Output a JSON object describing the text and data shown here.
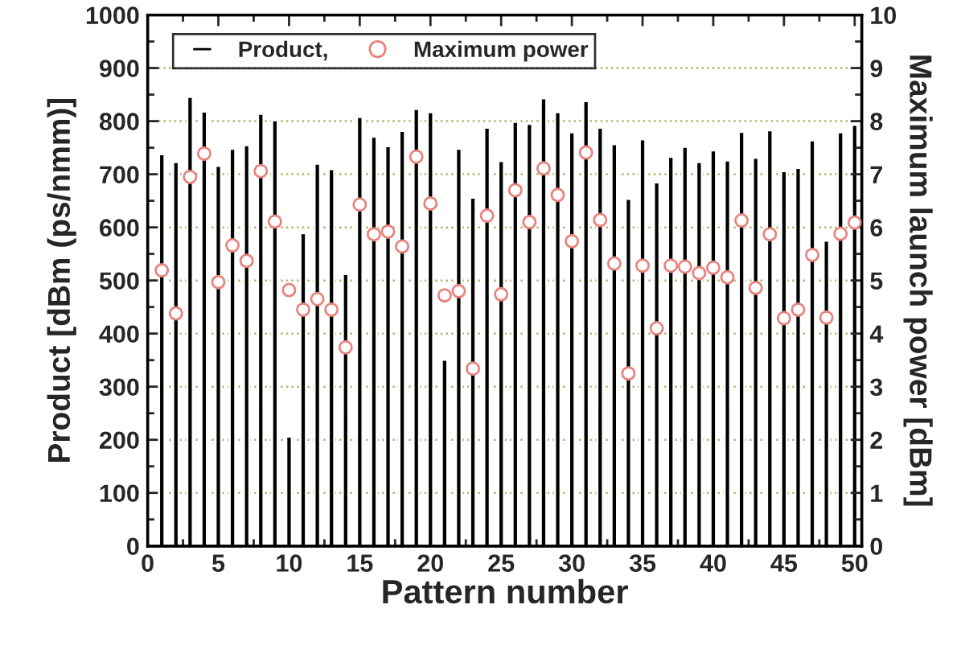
{
  "chart_data": {
    "type": "bar",
    "xlabel": "Pattern number",
    "ylabel": "Product [dBm (ps/nmm)]",
    "y2label": "Maximum launch power [dBm]",
    "x": [
      1,
      2,
      3,
      4,
      5,
      6,
      7,
      8,
      9,
      10,
      11,
      12,
      13,
      14,
      15,
      16,
      17,
      18,
      19,
      20,
      21,
      22,
      23,
      24,
      25,
      26,
      27,
      28,
      29,
      30,
      31,
      32,
      33,
      34,
      35,
      36,
      37,
      38,
      39,
      40,
      41,
      42,
      43,
      44,
      45,
      46,
      47,
      48,
      49,
      50
    ],
    "series": [
      {
        "name": "Product,",
        "color": "#000000",
        "values": [
          738,
          723,
          846,
          818,
          716,
          748,
          755,
          814,
          802,
          206,
          589,
          720,
          710,
          512,
          808,
          771,
          753,
          782,
          823,
          817,
          351,
          748,
          656,
          788,
          725,
          799,
          795,
          843,
          817,
          779,
          838,
          788,
          757,
          654,
          766,
          685,
          733,
          752,
          723,
          745,
          726,
          780,
          731,
          783,
          706,
          712,
          764,
          575,
          779,
          793
        ]
      },
      {
        "name": "Maximum power",
        "type": "scatter",
        "axis": "y2",
        "color": "#e8837e",
        "marker": "circle",
        "values": [
          5.19,
          4.38,
          6.95,
          7.39,
          4.97,
          5.66,
          5.37,
          7.06,
          6.11,
          4.82,
          4.45,
          4.65,
          4.45,
          3.74,
          6.43,
          5.87,
          5.92,
          5.64,
          7.33,
          6.45,
          4.72,
          4.8,
          3.34,
          6.22,
          4.74,
          6.7,
          6.1,
          7.11,
          6.61,
          5.74,
          7.41,
          6.14,
          5.32,
          3.25,
          5.28,
          4.1,
          5.28,
          5.26,
          5.14,
          5.24,
          5.06,
          6.13,
          4.86,
          5.87,
          4.29,
          4.45,
          5.48,
          4.3,
          5.88,
          6.09
        ]
      }
    ],
    "xlim": [
      0,
      50.5
    ],
    "xticks": [
      0,
      5,
      10,
      15,
      20,
      25,
      30,
      35,
      40,
      45,
      50
    ],
    "ylim": [
      0,
      1000
    ],
    "yticks": [
      0,
      100,
      200,
      300,
      400,
      500,
      600,
      700,
      800,
      900,
      1000
    ],
    "y2lim": [
      0,
      10
    ],
    "y2ticks": [
      0,
      1,
      2,
      3,
      4,
      5,
      6,
      7,
      8,
      9,
      10
    ],
    "grid": "y",
    "legend": "top left"
  }
}
